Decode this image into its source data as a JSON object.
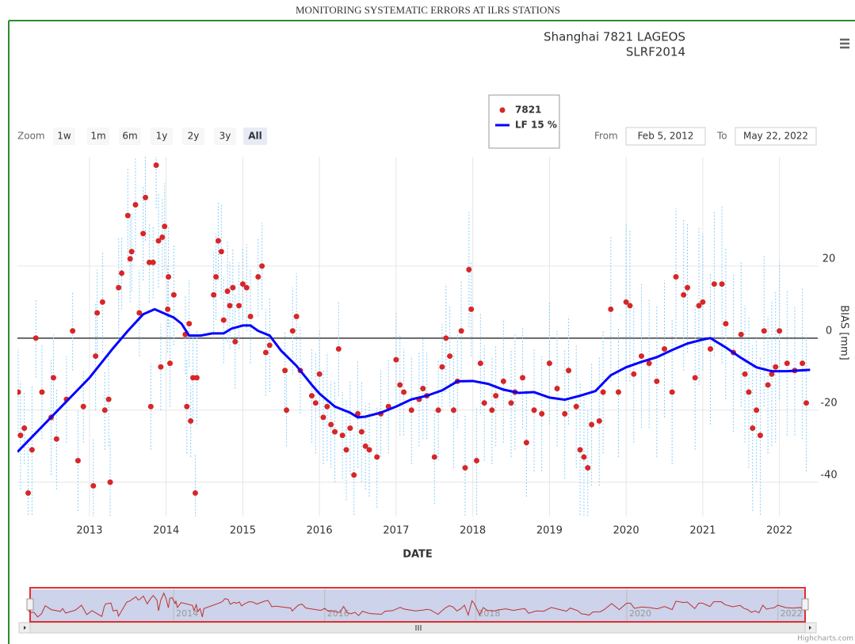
{
  "header": {
    "title": "MONITORING SYSTEMATIC ERRORS AT ILRS STATIONS"
  },
  "chart_data": {
    "type": "scatter",
    "subtitle": [
      "Shanghai 7821 LAGEOS",
      "SLRF2014"
    ],
    "x_label": "DATE",
    "y_label": "BIAS [mm]",
    "xlim": [
      2012.06,
      2022.5
    ],
    "xticks": [
      2013,
      2014,
      2015,
      2016,
      2017,
      2018,
      2019,
      2020,
      2021,
      2022
    ],
    "ylim": [
      -49.5,
      50.3
    ],
    "yticks": [
      -40,
      -20,
      0,
      20
    ],
    "grid": true,
    "legend": "top",
    "series": [
      {
        "name": "7821",
        "type": "scatter",
        "color": "#d62728",
        "error_color": "#87cefa",
        "x": [
          2012.07,
          2012.1,
          2012.15,
          2012.2,
          2012.25,
          2012.3,
          2012.38,
          2012.5,
          2012.53,
          2012.57,
          2012.7,
          2012.78,
          2012.85,
          2012.92,
          2013.05,
          2013.08,
          2013.1,
          2013.17,
          2013.2,
          2013.25,
          2013.27,
          2013.38,
          2013.42,
          2013.5,
          2013.53,
          2013.55,
          2013.6,
          2013.65,
          2013.7,
          2013.73,
          2013.78,
          2013.8,
          2013.83,
          2013.87,
          2013.9,
          2013.93,
          2013.95,
          2013.98,
          2014.02,
          2014.03,
          2014.05,
          2014.1,
          2014.25,
          2014.27,
          2014.3,
          2014.32,
          2014.35,
          2014.38,
          2014.4,
          2014.62,
          2014.65,
          2014.68,
          2014.72,
          2014.75,
          2014.8,
          2014.83,
          2014.87,
          2014.9,
          2014.95,
          2015.0,
          2015.05,
          2015.1,
          2015.2,
          2015.25,
          2015.3,
          2015.35,
          2015.55,
          2015.57,
          2015.65,
          2015.7,
          2015.75,
          2015.9,
          2015.95,
          2016.0,
          2016.05,
          2016.1,
          2016.15,
          2016.2,
          2016.25,
          2016.3,
          2016.35,
          2016.4,
          2016.45,
          2016.5,
          2016.55,
          2016.6,
          2016.65,
          2016.75,
          2016.8,
          2016.9,
          2017.0,
          2017.05,
          2017.1,
          2017.2,
          2017.3,
          2017.35,
          2017.4,
          2017.5,
          2017.55,
          2017.6,
          2017.65,
          2017.7,
          2017.75,
          2017.8,
          2017.85,
          2017.9,
          2017.95,
          2017.98,
          2018.05,
          2018.1,
          2018.15,
          2018.25,
          2018.3,
          2018.4,
          2018.5,
          2018.55,
          2018.65,
          2018.7,
          2018.8,
          2018.9,
          2019.0,
          2019.1,
          2019.2,
          2019.25,
          2019.35,
          2019.4,
          2019.45,
          2019.5,
          2019.55,
          2019.65,
          2019.7,
          2019.8,
          2019.9,
          2020.0,
          2020.05,
          2020.1,
          2020.2,
          2020.3,
          2020.4,
          2020.5,
          2020.6,
          2020.65,
          2020.75,
          2020.8,
          2020.9,
          2020.95,
          2021.0,
          2021.1,
          2021.15,
          2021.25,
          2021.3,
          2021.4,
          2021.5,
          2021.55,
          2021.6,
          2021.65,
          2021.7,
          2021.75,
          2021.8,
          2021.85,
          2021.9,
          2021.95,
          2022.0,
          2022.1,
          2022.2,
          2022.3,
          2022.35
        ],
        "values": [
          -15,
          -27,
          -25,
          -43,
          -31,
          0,
          -15,
          -22,
          -11,
          -28,
          -17,
          2,
          -34,
          -19,
          -41,
          -5,
          7,
          10,
          -20,
          -17,
          -40,
          14,
          18,
          34,
          22,
          24,
          37,
          7,
          29,
          39,
          21,
          -19,
          21,
          48,
          27,
          -8,
          28,
          31,
          8,
          17,
          -7,
          12,
          1,
          -19,
          4,
          -23,
          -11,
          -43,
          -11,
          12,
          17,
          27,
          24,
          5,
          13,
          9,
          14,
          -1,
          9,
          15,
          14,
          6,
          17,
          20,
          -4,
          -2,
          -9,
          -20,
          2,
          6,
          -9,
          -16,
          -18,
          -10,
          -22,
          -19,
          -24,
          -26,
          -3,
          -27,
          -31,
          -25,
          -38,
          -21,
          -26,
          -30,
          -31,
          -33,
          -21,
          -19,
          -6,
          -13,
          -15,
          -20,
          -17,
          -14,
          -16,
          -33,
          -20,
          -8,
          0,
          -5,
          -20,
          -12,
          2,
          -36,
          19,
          8,
          -34,
          -7,
          -18,
          -20,
          -16,
          -12,
          -18,
          -15,
          -11,
          -29,
          -20,
          -21,
          -7,
          -14,
          -21,
          -9,
          -19,
          -31,
          -33,
          -36,
          -24,
          -23,
          -15,
          8,
          -15,
          10,
          9,
          -10,
          -5,
          -7,
          -12,
          -3,
          -15,
          17,
          12,
          14,
          -11,
          9,
          10,
          -3,
          15,
          15,
          4,
          -4,
          1,
          -10,
          -15,
          -25,
          -20,
          -27,
          2,
          -13,
          -10,
          -8,
          2,
          -7,
          -9,
          -7,
          -18
        ],
        "errors": [
          12,
          15,
          10,
          14,
          18,
          11,
          13,
          16,
          12,
          14,
          12,
          11,
          14,
          10,
          13,
          15,
          12,
          14,
          11,
          13,
          12,
          14,
          10,
          13,
          12,
          11,
          14,
          12,
          13,
          12,
          11,
          12,
          10,
          12,
          13,
          12,
          11,
          12,
          12,
          14,
          12,
          14,
          11,
          13,
          12,
          10,
          12,
          11,
          13,
          12,
          12,
          11,
          13,
          12,
          14,
          12,
          11,
          13,
          12,
          10,
          12,
          13,
          11,
          12,
          12,
          13,
          11,
          10,
          12,
          12,
          12,
          13,
          14,
          12,
          13,
          15,
          12,
          14,
          13,
          12,
          14,
          13,
          12,
          15,
          14,
          12,
          13,
          14,
          12,
          13,
          13,
          14,
          12,
          15,
          13,
          14,
          12,
          13,
          14,
          12,
          15,
          14,
          16,
          13,
          14,
          15,
          16,
          13,
          15,
          14,
          16,
          15,
          14,
          17,
          15,
          16,
          14,
          15,
          17,
          16,
          17,
          16,
          18,
          15,
          17,
          19,
          18,
          16,
          17,
          18,
          17,
          20,
          18,
          22,
          21,
          19,
          20,
          18,
          21,
          19,
          20,
          19,
          21,
          18,
          20,
          22,
          19,
          21,
          20,
          22,
          21,
          22,
          20,
          19,
          21,
          23,
          20,
          22,
          21,
          19,
          20,
          21,
          19,
          20,
          18,
          21,
          19
        ]
      },
      {
        "name": "LF 15 %",
        "type": "line",
        "color": "#0000ff",
        "x": [
          2012.06,
          2013.0,
          2013.3,
          2013.5,
          2013.7,
          2013.85,
          2014.0,
          2014.1,
          2014.2,
          2014.3,
          2014.45,
          2014.6,
          2014.75,
          2014.85,
          2015.0,
          2015.1,
          2015.2,
          2015.35,
          2015.5,
          2015.7,
          2015.9,
          2016.0,
          2016.2,
          2016.4,
          2016.5,
          2016.6,
          2016.8,
          2017.0,
          2017.2,
          2017.4,
          2017.6,
          2017.8,
          2018.0,
          2018.2,
          2018.4,
          2018.6,
          2018.8,
          2019.0,
          2019.2,
          2019.4,
          2019.6,
          2019.8,
          2020.0,
          2020.2,
          2020.4,
          2020.6,
          2020.8,
          2021.0,
          2021.1,
          2021.3,
          2021.5,
          2021.7,
          2021.9,
          2022.1,
          2022.4
        ],
        "values": [
          -31.6,
          -11,
          -3,
          2,
          6.6,
          8,
          6.6,
          5.7,
          4,
          0.7,
          0.7,
          1.3,
          1.3,
          2.6,
          3.5,
          3.5,
          2,
          0.7,
          -3.5,
          -7.7,
          -13,
          -15.4,
          -19,
          -20.7,
          -22,
          -21.8,
          -20.7,
          -19,
          -17,
          -16,
          -14.5,
          -12,
          -11.9,
          -12.7,
          -14.3,
          -15.2,
          -15,
          -16.5,
          -17.1,
          -16,
          -14.7,
          -10.3,
          -8.1,
          -6.6,
          -5.3,
          -3.3,
          -1.5,
          -0.4,
          0,
          -2.6,
          -5.5,
          -8.1,
          -9.2,
          -9.2,
          -8.8
        ]
      }
    ],
    "range_selector": {
      "label": "Zoom",
      "buttons": [
        "1w",
        "1m",
        "6m",
        "1y",
        "2y",
        "3y",
        "All"
      ],
      "selected": 6,
      "from_label": "From",
      "from": "Feb 5, 2012",
      "to_label": "To",
      "to": "May 22, 2022"
    },
    "navigator": {
      "xlim": [
        2012.1,
        2022.36
      ],
      "xticks": [
        2014,
        2016,
        2018,
        2020,
        2022
      ]
    },
    "credits": "Highcharts.com"
  }
}
